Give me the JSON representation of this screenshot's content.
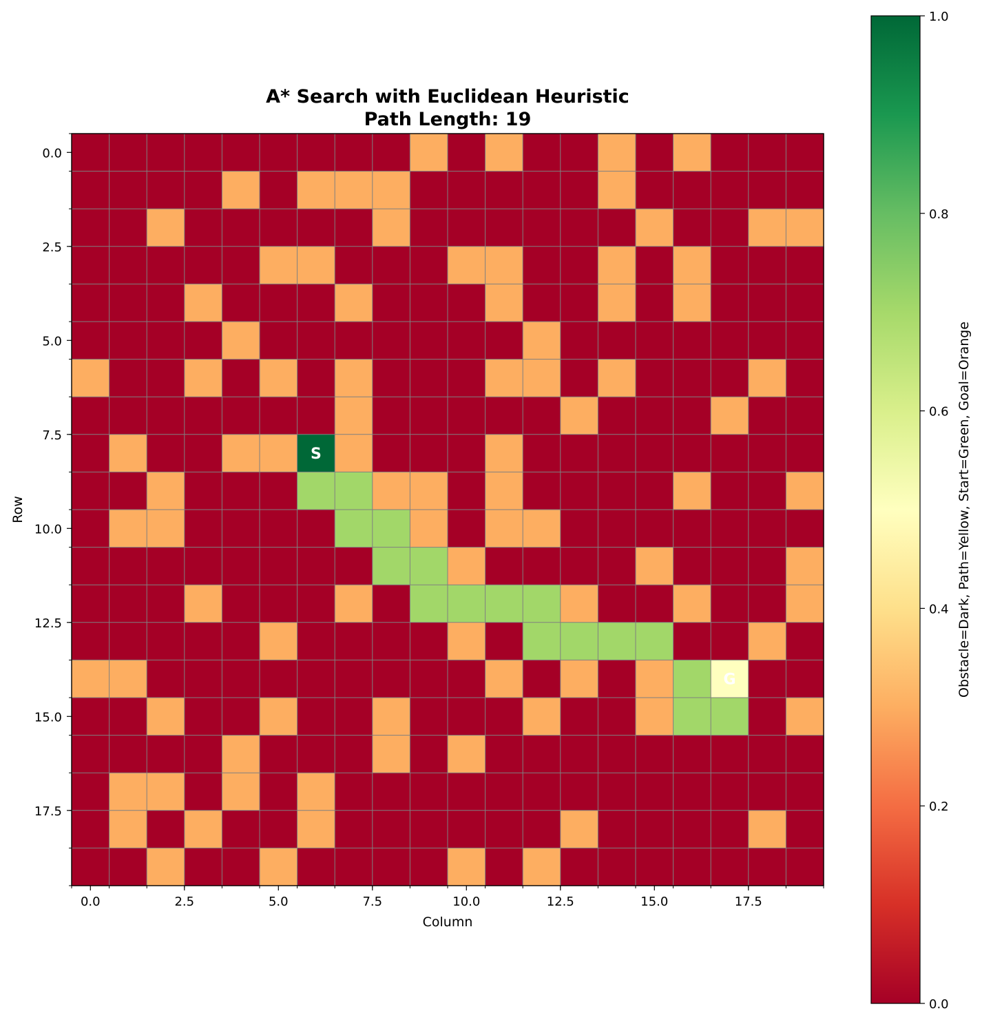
{
  "chart_data": {
    "type": "heatmap",
    "title_line1": "A* Search with Euclidean Heuristic",
    "title_line2": "Path Length: 19",
    "xlabel": "Column",
    "ylabel": "Row",
    "colorbar_label": "Obstacle=Dark, Path=Yellow, Start=Green, Goal=Orange",
    "colormap": "RdYlGn",
    "vmin": 0.0,
    "vmax": 1.0,
    "xlim": [
      -0.5,
      19.5
    ],
    "ylim": [
      19.5,
      -0.5
    ],
    "x_ticks": [
      "0.0",
      "2.5",
      "5.0",
      "7.5",
      "10.0",
      "12.5",
      "15.0",
      "17.5"
    ],
    "x_tick_values": [
      0,
      2.5,
      5,
      7.5,
      10,
      12.5,
      15,
      17.5
    ],
    "y_ticks": [
      "0.0",
      "2.5",
      "5.0",
      "7.5",
      "10.0",
      "12.5",
      "15.0",
      "17.5"
    ],
    "y_tick_values": [
      0,
      2.5,
      5,
      7.5,
      10,
      12.5,
      15,
      17.5
    ],
    "colorbar_ticks": [
      "0.0",
      "0.2",
      "0.4",
      "0.6",
      "0.8",
      "1.0"
    ],
    "colorbar_tick_values": [
      0,
      0.2,
      0.4,
      0.6,
      0.8,
      1.0
    ],
    "grid": true,
    "cell_values": {
      "0": 0.0,
      "1": 0.3,
      "2": 0.75,
      "3": 1.0,
      "4": 0.5
    },
    "grid_rows": [
      "00000000010100101000",
      "00001011100000100000",
      "00100000100000010011",
      "00000110001100101000",
      "00010001000100101000",
      "00001000000010000000",
      "10010101000110100010",
      "00000001000001000100",
      "01001131000100000000",
      "00100022110100001001",
      "01100002210110000000",
      "00000000221000010001",
      "00010001022221001001",
      "00000100001022220010",
      "11000000000101012400",
      "00100100100010012201",
      "00001000101000000000",
      "01101010000000000000",
      "01010010000001000010",
      "00100100001010000000"
    ],
    "start": {
      "row": 8,
      "col": 6,
      "label": "S"
    },
    "goal": {
      "row": 14,
      "col": 17,
      "label": "G"
    }
  }
}
